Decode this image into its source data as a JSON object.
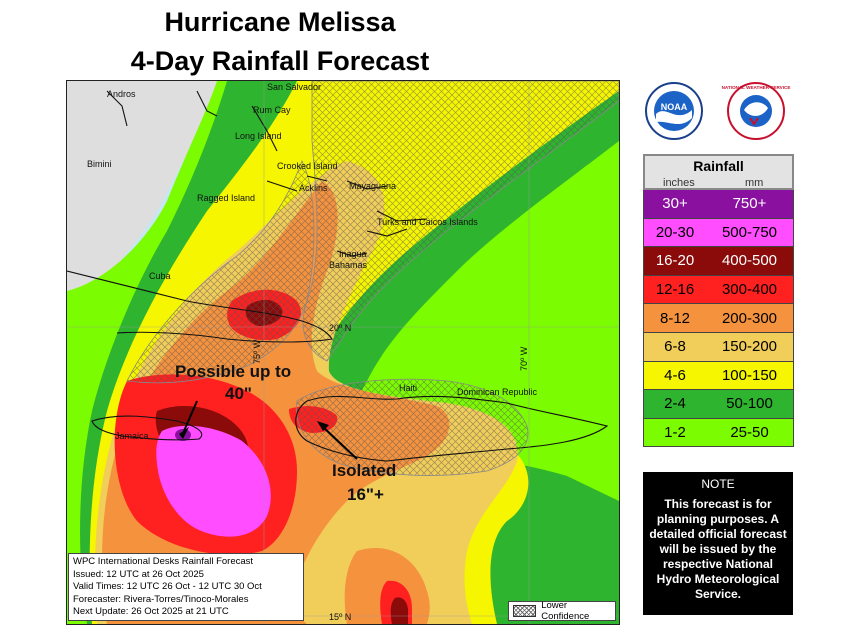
{
  "title_line1": "Hurricane Melissa",
  "title_line2": "4-Day Rainfall Forecast",
  "map": {
    "places": [
      "Andros",
      "San Salvador",
      "Rum Cay",
      "Long Island",
      "Bimini",
      "Crooked Island",
      "Ragged Island",
      "Acklins",
      "Mayaguana",
      "Turks and Caicos Islands",
      "Inagua",
      "Bahamas",
      "Cuba",
      "Haiti",
      "Dominican Republic",
      "Jamaica"
    ],
    "grid_labels": [
      "20º N",
      "75º W",
      "70º W",
      "15º N"
    ],
    "callout1_line1": "Possible up to",
    "callout1_line2": "40\"",
    "callout2_line1": "Isolated",
    "callout2_line2": "16\"+",
    "colors": {
      "ocean": "#c9e6f0",
      "land": "#dedede",
      "c1_2": "#7cfc00",
      "c2_4": "#2fb42f",
      "c4_6": "#f6f600",
      "c6_8": "#f1cd5a",
      "c8_12": "#f5923e",
      "c12_16": "#ff2020",
      "c16_20": "#8b0a0a",
      "c20_30": "#ff4dff",
      "c30_plus": "#8a10a0"
    }
  },
  "info": {
    "line1": "WPC International Desks Rainfall Forecast",
    "line2": "Issued: 12 UTC at 26 Oct 2025",
    "line3": "Valid Times: 12 UTC 26 Oct - 12 UTC 30 Oct",
    "line4": "Forecaster: Rivera-Torres/Tinoco-Morales",
    "line5": "Next Update: 26 Oct 2025 at 21 UTC"
  },
  "lower_confidence_label": "Lower Confidence",
  "logos": {
    "noaa_text": "NOAA",
    "nws_text": "NATIONAL WEATHER SERVICE"
  },
  "legend": {
    "title": "Rainfall",
    "col_inches": "inches",
    "col_mm": "mm",
    "rows": [
      {
        "inches": "30+",
        "mm": "750+",
        "color": "#8a10a0",
        "text_color": "#ffffff"
      },
      {
        "inches": "20-30",
        "mm": "500-750",
        "color": "#ff4dff",
        "text_color": "#000000"
      },
      {
        "inches": "16-20",
        "mm": "400-500",
        "color": "#8b0a0a",
        "text_color": "#ffffff"
      },
      {
        "inches": "12-16",
        "mm": "300-400",
        "color": "#ff2020",
        "text_color": "#000000"
      },
      {
        "inches": "8-12",
        "mm": "200-300",
        "color": "#f5923e",
        "text_color": "#000000"
      },
      {
        "inches": "6-8",
        "mm": "150-200",
        "color": "#f1cd5a",
        "text_color": "#000000"
      },
      {
        "inches": "4-6",
        "mm": "100-150",
        "color": "#f6f600",
        "text_color": "#000000"
      },
      {
        "inches": "2-4",
        "mm": "50-100",
        "color": "#2fb42f",
        "text_color": "#000000"
      },
      {
        "inches": "1-2",
        "mm": "25-50",
        "color": "#7cfc00",
        "text_color": "#000000"
      }
    ]
  },
  "note": {
    "title": "NOTE",
    "text": "This forecast is for planning purposes. A detailed official forecast will be issued by the respective National Hydro Meteorological Service."
  }
}
